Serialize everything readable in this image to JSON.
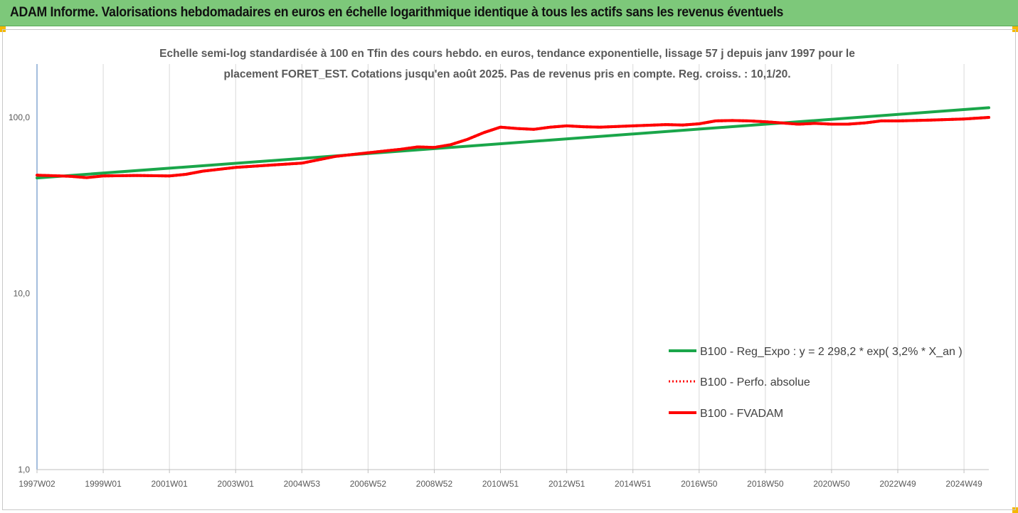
{
  "header": {
    "title": "ADAM Informe. Valorisations hebdomadaires en euros en échelle logarithmique identique à tous les actifs sans les revenus éventuels"
  },
  "chart_data": {
    "type": "line",
    "subtitle_lines": [
      "Echelle semi-log standardisée à 100 en Tfin des cours hebdo. en euros, tendance exponentielle, lissage 57 j depuis janv 1997 pour le",
      "placement FORET_EST. Cotations jusqu'en août 2025. Pas de revenus pris en compte. Reg. croiss. : 10,1/20."
    ],
    "y_scale": "log",
    "ylim": [
      1,
      200
    ],
    "y_ticks": [
      {
        "value": 1,
        "label": "1,0"
      },
      {
        "value": 10,
        "label": "10,0"
      },
      {
        "value": 100,
        "label": "100,0"
      }
    ],
    "xlim": [
      1997.0,
      2025.75
    ],
    "x_ticks": [
      {
        "x": 1997.0,
        "label": "1997W02"
      },
      {
        "x": 1999.0,
        "label": "1999W01"
      },
      {
        "x": 2001.0,
        "label": "2001W01"
      },
      {
        "x": 2003.0,
        "label": "2003W01"
      },
      {
        "x": 2005.0,
        "label": "2004W53"
      },
      {
        "x": 2007.0,
        "label": "2006W52"
      },
      {
        "x": 2009.0,
        "label": "2008W52"
      },
      {
        "x": 2011.0,
        "label": "2010W51"
      },
      {
        "x": 2013.0,
        "label": "2012W51"
      },
      {
        "x": 2015.0,
        "label": "2014W51"
      },
      {
        "x": 2017.0,
        "label": "2016W50"
      },
      {
        "x": 2019.0,
        "label": "2018W50"
      },
      {
        "x": 2021.0,
        "label": "2020W50"
      },
      {
        "x": 2023.0,
        "label": "2022W49"
      },
      {
        "x": 2025.0,
        "label": "2024W49"
      }
    ],
    "grid": "vertical",
    "legend_position": "lower-right",
    "series": [
      {
        "name": "B100 - Reg_Expo : y = 2 298,2 * exp( 3,2% *  X_an )",
        "color": "#1aa64a",
        "style": "solid",
        "x": [
          1997.0,
          2025.75
        ],
        "y": [
          45.3,
          113.5
        ]
      },
      {
        "name": "B100 - Perfo. absolue",
        "color": "#ff0000",
        "style": "dotted",
        "x": [
          1997.0,
          1998.0,
          1998.5,
          1999.0,
          2000.0,
          2001.0,
          2001.5,
          2002.0,
          2003.0,
          2004.0,
          2005.0,
          2006.0,
          2007.0,
          2008.0,
          2008.5,
          2009.0,
          2009.5,
          2010.0,
          2010.5,
          2011.0,
          2011.5,
          2012.0,
          2012.5,
          2013.0,
          2013.5,
          2014.0,
          2015.0,
          2016.0,
          2016.5,
          2017.0,
          2017.5,
          2018.0,
          2018.5,
          2019.0,
          2019.5,
          2020.0,
          2020.5,
          2021.0,
          2021.5,
          2022.0,
          2022.5,
          2023.0,
          2024.0,
          2025.0,
          2025.75
        ],
        "y": [
          47,
          46.3,
          45.5,
          46.5,
          46.8,
          46.5,
          47.5,
          49.5,
          52,
          53.5,
          55,
          60,
          63,
          66,
          68,
          67.5,
          70,
          75,
          82,
          88,
          86.5,
          85.5,
          88,
          89.5,
          88.5,
          88,
          89.5,
          91,
          90.5,
          92,
          95.5,
          96,
          95.5,
          94.5,
          93,
          91.5,
          92.5,
          91.5,
          91.5,
          93,
          95.5,
          95.5,
          96.5,
          98,
          100
        ]
      },
      {
        "name": "B100 - FVADAM",
        "color": "#ff0000",
        "style": "solid",
        "x": [
          1997.0,
          1998.0,
          1998.5,
          1999.0,
          2000.0,
          2001.0,
          2001.5,
          2002.0,
          2003.0,
          2004.0,
          2005.0,
          2006.0,
          2007.0,
          2008.0,
          2008.5,
          2009.0,
          2009.5,
          2010.0,
          2010.5,
          2011.0,
          2011.5,
          2012.0,
          2012.5,
          2013.0,
          2013.5,
          2014.0,
          2015.0,
          2016.0,
          2016.5,
          2017.0,
          2017.5,
          2018.0,
          2018.5,
          2019.0,
          2019.5,
          2020.0,
          2020.5,
          2021.0,
          2021.5,
          2022.0,
          2022.5,
          2023.0,
          2024.0,
          2025.0,
          2025.75
        ],
        "y": [
          47,
          46.3,
          45.5,
          46.5,
          46.8,
          46.5,
          47.5,
          49.5,
          52,
          53.5,
          55,
          60,
          63,
          66,
          68,
          67.5,
          70,
          75,
          82,
          88,
          86.5,
          85.5,
          88,
          89.5,
          88.5,
          88,
          89.5,
          91,
          90.5,
          92,
          95.5,
          96,
          95.5,
          94.5,
          93,
          91.5,
          92.5,
          91.5,
          91.5,
          93,
          95.5,
          95.5,
          96.5,
          98,
          100
        ]
      }
    ]
  }
}
